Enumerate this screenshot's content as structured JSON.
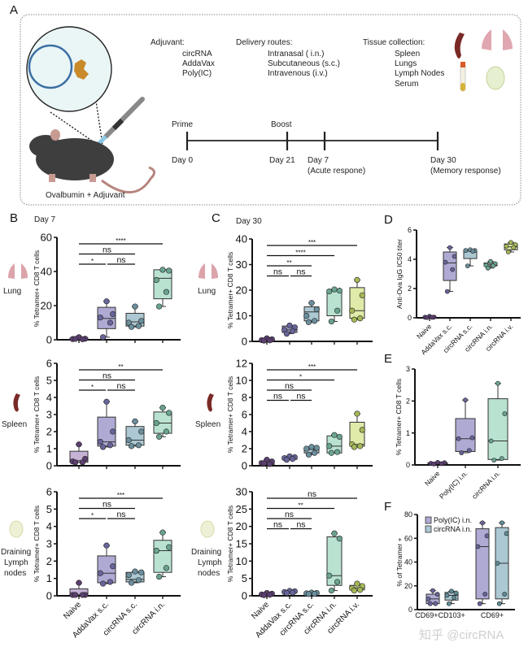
{
  "panel_a": {
    "letter": "A",
    "adjuvant_title": "Adjuvant:",
    "adjuvants": [
      "circRNA",
      "AddaVax",
      "Poly(IC)"
    ],
    "routes_title": "Delivery routes:",
    "routes": [
      "Intranasal ( i.n.)",
      "Subcutaneous (s.c.)",
      "Intravenous (i.v.)"
    ],
    "tissue_title": "Tissue collection:",
    "tissues": [
      "Spleen",
      "Lungs",
      "Lymph Nodes",
      "Serum"
    ],
    "timeline": {
      "prime": "Prime",
      "boost": "Boost",
      "day0": "Day 0",
      "day21": "Day 21",
      "day7": "Day  7",
      "acute": "(Acute respone)",
      "day30": "Day 30",
      "memory": "(Memory response)"
    },
    "caption": "Ovalbumin  +  Adjuvant"
  },
  "labels": {
    "B": "B",
    "C": "C",
    "D": "D",
    "E": "E",
    "F": "F",
    "day7": "Day 7",
    "day30": "Day 30",
    "lung": "Lung",
    "spleen": "Spleen",
    "ln": [
      "Draining",
      "Lymph",
      "nodes"
    ]
  },
  "watermark": "知乎 @circRNA",
  "colors": {
    "Naive": {
      "box": "#c5b2d4",
      "pt": "#5b3f70"
    },
    "AddaVax s.c.": {
      "box": "#aeaad3",
      "pt": "#67659a"
    },
    "circRNA s.c.": {
      "box": "#acc8d2",
      "pt": "#6b8f9d"
    },
    "circRNA i.n.": {
      "box": "#b9e2d1",
      "pt": "#6aa490"
    },
    "circRNA i.v.": {
      "box": "#e0eaa9",
      "pt": "#a4b858"
    },
    "Poly(IC) i.n.": {
      "box": "#aeaad3",
      "pt": "#67659a"
    },
    "circRNA i.n. F": {
      "box": "#acc8d2",
      "pt": "#5f8d96"
    }
  },
  "chart_data": [
    {
      "id": "B_lung",
      "type": "box",
      "ylabel": "% Tetramer+ CD8 T cells",
      "ylim": [
        0,
        60
      ],
      "yticks": [
        0,
        20,
        40,
        60
      ],
      "show_xlabels": false,
      "categories": [
        "Naive",
        "AddaVax s.c.",
        "circRNA s.c.",
        "circRNA i.n."
      ],
      "boxes": [
        {
          "min": 0.2,
          "q1": 0.2,
          "median": 0.5,
          "q3": 1.0,
          "max": 1.5,
          "points": [
            1.5,
            0.6,
            0.4,
            0.3,
            0.5
          ]
        },
        {
          "min": 1.5,
          "q1": 6.5,
          "median": 12.5,
          "q3": 19,
          "max": 22.5,
          "points": [
            22.5,
            15,
            13,
            10,
            1.5
          ]
        },
        {
          "min": 7.5,
          "q1": 8,
          "median": 10.5,
          "q3": 15.5,
          "max": 19.5,
          "points": [
            19.5,
            11,
            10,
            8,
            7.5
          ]
        },
        {
          "min": 19.5,
          "q1": 24,
          "median": 36,
          "q3": 41,
          "max": 41,
          "points": [
            41,
            40.5,
            35,
            28,
            19.5
          ]
        }
      ],
      "significance": [
        {
          "from": 0,
          "to": 3,
          "label": "****"
        },
        {
          "from": 0,
          "to": 2,
          "label": "ns"
        },
        {
          "from": 0,
          "to": 1,
          "label": "*"
        },
        {
          "from": 1,
          "to": 2,
          "label": "ns"
        }
      ]
    },
    {
      "id": "C_lung",
      "type": "box",
      "ylabel": "% Tetramer+ CD8 T cells",
      "ylim": [
        0,
        40
      ],
      "yticks": [
        0,
        10,
        20,
        30,
        40
      ],
      "show_xlabels": false,
      "categories": [
        "Naive",
        "AddaVax s.c.",
        "circRNA s.c.",
        "circRNA i.n.",
        "circRNA i.v."
      ],
      "boxes": [
        {
          "min": 0.2,
          "q1": 0.3,
          "median": 0.5,
          "q3": 0.9,
          "max": 1.2,
          "points": [
            1.2,
            0.8,
            0.5,
            0.4,
            0.3
          ]
        },
        {
          "min": 3,
          "q1": 3.5,
          "median": 4.5,
          "q3": 6,
          "max": 6.2,
          "points": [
            6.2,
            5.5,
            4.5,
            4,
            3
          ]
        },
        {
          "min": 7.5,
          "q1": 8,
          "median": 11.5,
          "q3": 13.5,
          "max": 15,
          "points": [
            15,
            12.5,
            10,
            8,
            7.5
          ]
        },
        {
          "min": 7.8,
          "q1": 10,
          "median": 19.8,
          "q3": 20,
          "max": 20.3,
          "points": [
            20.3,
            19.8,
            19.5,
            12,
            7.8
          ]
        },
        {
          "min": 8.5,
          "q1": 9,
          "median": 12,
          "q3": 21,
          "max": 24,
          "points": [
            24,
            18,
            12,
            9,
            8.5
          ]
        }
      ],
      "significance": [
        {
          "from": 0,
          "to": 4,
          "label": "***"
        },
        {
          "from": 0,
          "to": 3,
          "label": "****"
        },
        {
          "from": 0,
          "to": 2,
          "label": "**"
        },
        {
          "from": 0,
          "to": 1,
          "label": "ns"
        },
        {
          "from": 1,
          "to": 2,
          "label": "ns"
        }
      ]
    },
    {
      "id": "B_spleen",
      "type": "box",
      "ylabel": "% Tetramer+ CD8 T cells",
      "ylim": [
        0,
        6
      ],
      "yticks": [
        0,
        1,
        2,
        3,
        4,
        5,
        6
      ],
      "show_xlabels": false,
      "categories": [
        "Naive",
        "AddaVax s.c.",
        "circRNA s.c.",
        "circRNA i.n."
      ],
      "boxes": [
        {
          "min": 0.2,
          "q1": 0.2,
          "median": 0.3,
          "q3": 0.85,
          "max": 1.25,
          "points": [
            1.25,
            0.4,
            0.25,
            0.2,
            0.2
          ]
        },
        {
          "min": 1.1,
          "q1": 1.15,
          "median": 1.4,
          "q3": 2.85,
          "max": 3.75,
          "points": [
            3.75,
            2,
            1.4,
            1.2,
            1.1
          ]
        },
        {
          "min": 1.15,
          "q1": 1.2,
          "median": 1.5,
          "q3": 2.3,
          "max": 2.6,
          "points": [
            2.6,
            2,
            1.5,
            1.2,
            1.15
          ]
        },
        {
          "min": 1.7,
          "q1": 1.9,
          "median": 2.5,
          "q3": 3.15,
          "max": 3.4,
          "points": [
            3.4,
            3.1,
            2.5,
            2,
            1.7
          ]
        }
      ],
      "significance": [
        {
          "from": 0,
          "to": 3,
          "label": "**"
        },
        {
          "from": 0,
          "to": 2,
          "label": "ns"
        },
        {
          "from": 0,
          "to": 1,
          "label": "*"
        },
        {
          "from": 1,
          "to": 2,
          "label": "ns"
        }
      ]
    },
    {
      "id": "C_spleen",
      "type": "box",
      "ylabel": "% Tetramer+ CD8 T cells",
      "ylim": [
        0,
        12
      ],
      "yticks": [
        0,
        2,
        4,
        6,
        8,
        10,
        12
      ],
      "show_xlabels": false,
      "categories": [
        "Naive",
        "AddaVax s.c.",
        "circRNA s.c.",
        "circRNA i.n.",
        "circRNA i.v."
      ],
      "boxes": [
        {
          "min": 0.1,
          "q1": 0.15,
          "median": 0.35,
          "q3": 0.55,
          "max": 0.7,
          "points": [
            0.7,
            0.5,
            0.3,
            0.2,
            0.3
          ]
        },
        {
          "min": 0.7,
          "q1": 0.75,
          "median": 0.9,
          "q3": 1.05,
          "max": 1.1,
          "points": [
            1.1,
            1,
            0.9,
            0.8,
            0.7
          ]
        },
        {
          "min": 1.3,
          "q1": 1.5,
          "median": 1.9,
          "q3": 2.1,
          "max": 2.2,
          "points": [
            2.2,
            2.1,
            2,
            1.5,
            1.3
          ]
        },
        {
          "min": 1.5,
          "q1": 1.5,
          "median": 2.3,
          "q3": 3.5,
          "max": 3.6,
          "points": [
            3.6,
            3.4,
            2.3,
            1.6,
            1.5
          ]
        },
        {
          "min": 2.2,
          "q1": 2.3,
          "median": 2.5,
          "q3": 5.1,
          "max": 6.1,
          "points": [
            6.1,
            4.2,
            2.5,
            2.3,
            2.2
          ]
        }
      ],
      "significance": [
        {
          "from": 0,
          "to": 4,
          "label": "***"
        },
        {
          "from": 0,
          "to": 3,
          "label": "*"
        },
        {
          "from": 0,
          "to": 2,
          "label": "ns"
        },
        {
          "from": 0,
          "to": 1,
          "label": "ns"
        },
        {
          "from": 1,
          "to": 2,
          "label": "ns"
        }
      ]
    },
    {
      "id": "B_ln",
      "type": "box",
      "ylabel": "% Tetramer+ CD8 T cells",
      "ylim": [
        0,
        6
      ],
      "yticks": [
        0,
        1,
        2,
        3,
        4,
        5,
        6
      ],
      "show_xlabels": true,
      "categories": [
        "Naive",
        "AddaVax s.c.",
        "circRNA s.c.",
        "circRNA i.n."
      ],
      "boxes": [
        {
          "min": 0.05,
          "q1": 0.05,
          "median": 0.05,
          "q3": 0.4,
          "max": 0.75,
          "points": [
            0.75,
            0.05,
            0.05,
            0.05,
            0.05
          ]
        },
        {
          "min": 0.7,
          "q1": 0.75,
          "median": 1.3,
          "q3": 2.3,
          "max": 2.9,
          "points": [
            2.9,
            1.7,
            1.3,
            0.8,
            0.7
          ]
        },
        {
          "min": 0.75,
          "q1": 0.8,
          "median": 0.95,
          "q3": 1.35,
          "max": 1.4,
          "points": [
            1.4,
            1.35,
            1.2,
            0.9,
            0.75
          ]
        },
        {
          "min": 1.1,
          "q1": 1.35,
          "median": 2.6,
          "q3": 3.2,
          "max": 3.65,
          "points": [
            3.65,
            2.8,
            2.6,
            1.6,
            1.1
          ]
        }
      ],
      "significance": [
        {
          "from": 0,
          "to": 3,
          "label": "***"
        },
        {
          "from": 0,
          "to": 2,
          "label": "ns"
        },
        {
          "from": 0,
          "to": 1,
          "label": "*"
        },
        {
          "from": 1,
          "to": 2,
          "label": "ns"
        }
      ]
    },
    {
      "id": "C_ln",
      "type": "box",
      "ylabel": "% Tetramer+ CD8 T cells",
      "ylim": [
        0,
        30
      ],
      "yticks": [
        0,
        5,
        10,
        15,
        20,
        25,
        30
      ],
      "show_xlabels": true,
      "categories": [
        "Naive",
        "AddaVax s.c.",
        "circRNA s.c.",
        "circRNA i.n.",
        "circRNA i.v."
      ],
      "boxes": [
        {
          "min": 0.2,
          "q1": 0.3,
          "median": 0.5,
          "q3": 0.7,
          "max": 0.8,
          "points": [
            0.8,
            0.6,
            0.4,
            0.3,
            0.2
          ]
        },
        {
          "min": 0.8,
          "q1": 0.9,
          "median": 1.1,
          "q3": 1.3,
          "max": 1.4,
          "points": [
            1.4,
            1.3,
            1.1,
            0.9,
            0.8
          ]
        },
        {
          "min": 0.5,
          "q1": 0.55,
          "median": 0.7,
          "q3": 0.85,
          "max": 0.9,
          "points": [
            0.9,
            0.8,
            0.7,
            0.6,
            0.5
          ]
        },
        {
          "min": 1.5,
          "q1": 3,
          "median": 5.8,
          "q3": 17,
          "max": 18,
          "points": [
            18,
            16.5,
            5.8,
            4,
            1.5
          ]
        },
        {
          "min": 1.5,
          "q1": 1.7,
          "median": 2.3,
          "q3": 3,
          "max": 3.5,
          "points": [
            3.5,
            2.8,
            2.2,
            1.7,
            1.5
          ]
        }
      ],
      "significance": [
        {
          "from": 0,
          "to": 4,
          "label": "ns"
        },
        {
          "from": 0,
          "to": 3,
          "label": "**"
        },
        {
          "from": 0,
          "to": 2,
          "label": "ns"
        },
        {
          "from": 0,
          "to": 1,
          "label": "ns"
        },
        {
          "from": 1,
          "to": 2,
          "label": "ns"
        }
      ]
    },
    {
      "id": "D",
      "type": "box",
      "ylabel": "Anti-Ova IgG IC50 titer",
      "ylim": [
        0,
        6
      ],
      "yticks": [
        0,
        2,
        4,
        6
      ],
      "show_xlabels": true,
      "categories": [
        "Naive",
        "AddaVax s.c.",
        "circRNA s.c.",
        "circRNA i.n.",
        "circRNA i.v."
      ],
      "boxes": [
        {
          "min": 0.02,
          "q1": 0.03,
          "median": 0.05,
          "q3": 0.07,
          "max": 0.1,
          "points": [
            0.1,
            0.05,
            0.04,
            0.03,
            0.02
          ]
        },
        {
          "min": 1.8,
          "q1": 2.55,
          "median": 3.75,
          "q3": 4.5,
          "max": 4.8,
          "points": [
            4.8,
            4.2,
            3.8,
            3.3,
            1.8
          ]
        },
        {
          "min": 3.55,
          "q1": 4.05,
          "median": 4.6,
          "q3": 4.6,
          "max": 4.65,
          "points": [
            4.65,
            4.6,
            4.6,
            4.55,
            3.55
          ]
        },
        {
          "min": 3.4,
          "q1": 3.55,
          "median": 3.65,
          "q3": 3.75,
          "max": 3.85,
          "points": [
            3.85,
            3.7,
            3.6,
            3.55,
            3.4
          ]
        },
        {
          "min": 4.5,
          "q1": 4.65,
          "median": 4.85,
          "q3": 5.05,
          "max": 5.15,
          "points": [
            5.15,
            5.0,
            4.9,
            4.8,
            4.5
          ]
        }
      ],
      "significance": []
    },
    {
      "id": "E",
      "type": "box",
      "ylabel": "% Tetramer+ CD8 T cells",
      "ylim": [
        0,
        3
      ],
      "yticks": [
        0,
        1,
        2,
        3
      ],
      "show_xlabels": true,
      "categories": [
        "Naive",
        "Poly(IC) i.n.",
        "circRNA i.n."
      ],
      "boxes": [
        {
          "min": 0.03,
          "q1": 0.04,
          "median": 0.05,
          "q3": 0.07,
          "max": 0.08,
          "points": [
            0.08,
            0.07,
            0.05,
            0.04,
            0.03
          ]
        },
        {
          "min": 0.38,
          "q1": 0.42,
          "median": 0.82,
          "q3": 1.45,
          "max": 2.03,
          "points": [
            2.03,
            0.85,
            0.82,
            0.45,
            0.38
          ]
        },
        {
          "min": 0.15,
          "q1": 0.17,
          "median": 0.75,
          "q3": 2.07,
          "max": 2.55,
          "points": [
            2.55,
            1.6,
            0.75,
            0.2,
            0.15
          ]
        }
      ],
      "significance": []
    },
    {
      "id": "F",
      "type": "box",
      "ylabel": "% of Tetramer +",
      "ylim": [
        0,
        80
      ],
      "yticks": [
        0,
        20,
        40,
        60,
        80
      ],
      "show_xlabels": false,
      "groups": [
        "CD69+CD103+",
        "CD69+"
      ],
      "legend": {
        "placement": "top-left",
        "entries": [
          "Poly(IC) i.n.",
          "circRNA i.n."
        ]
      },
      "categories": [
        "Poly(IC) i.n.",
        "circRNA i.n. F",
        "Poly(IC) i.n.",
        "circRNA i.n. F"
      ],
      "boxes": [
        {
          "min": 5,
          "q1": 5,
          "median": 9,
          "q3": 13,
          "max": 16,
          "points": [
            16,
            13,
            9,
            5,
            5
          ]
        },
        {
          "min": 5,
          "q1": 8,
          "median": 12,
          "q3": 14.5,
          "max": 15.5,
          "points": [
            15.5,
            14,
            12,
            10,
            5
          ]
        },
        {
          "min": 5,
          "q1": 9,
          "median": 53,
          "q3": 68,
          "max": 73,
          "points": [
            73,
            62,
            53,
            13,
            5
          ]
        },
        {
          "min": 5,
          "q1": 9,
          "median": 39,
          "q3": 69,
          "max": 73,
          "points": [
            73,
            64,
            39,
            13,
            5
          ]
        }
      ],
      "significance": []
    }
  ]
}
